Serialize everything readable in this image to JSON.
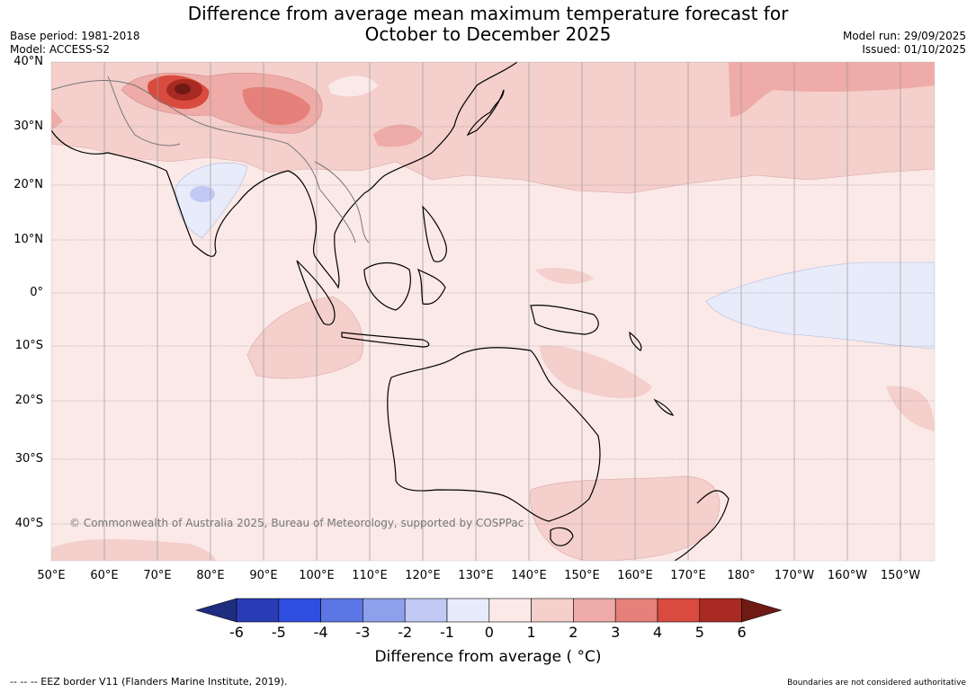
{
  "header": {
    "title_line1": "Difference from average mean maximum temperature forecast for",
    "title_line2": "October to December 2025",
    "base_period": "Base period: 1981-2018",
    "model": "Model: ACCESS-S2",
    "model_run": "Model run: 29/09/2025",
    "issued": "Issued: 01/10/2025"
  },
  "map": {
    "lat_labels": [
      "40°N",
      "30°N",
      "20°N",
      "10°N",
      "0°",
      "10°S",
      "20°S",
      "30°S",
      "40°S"
    ],
    "lon_labels": [
      "50°E",
      "60°E",
      "70°E",
      "80°E",
      "90°E",
      "100°E",
      "110°E",
      "120°E",
      "130°E",
      "140°E",
      "150°E",
      "160°E",
      "170°E",
      "180°",
      "170°W",
      "160°W",
      "150°W"
    ],
    "copyright": "© Commonwealth of Australia 2025, Bureau of Meteorology, supported by COSPPac"
  },
  "colorbar": {
    "ticks": [
      "-6",
      "-5",
      "-4",
      "-3",
      "-2",
      "-1",
      "0",
      "1",
      "2",
      "3",
      "4",
      "5",
      "6"
    ],
    "colors": [
      "#1f2d80",
      "#2a3cb5",
      "#2f4fe0",
      "#5d76e6",
      "#8e9fec",
      "#c2c9f4",
      "#e7ebfa",
      "#fbe9e8",
      "#f4cfcc",
      "#eeaba7",
      "#e6807a",
      "#da4b3f",
      "#a82a23",
      "#6f1a14"
    ],
    "label": "Difference from average ( °C)"
  },
  "footer": {
    "eez": "--  --  -- EEZ border V11 (Flanders Marine Institute, 2019).",
    "boundaries": "Boundaries are not considered authoritative"
  }
}
